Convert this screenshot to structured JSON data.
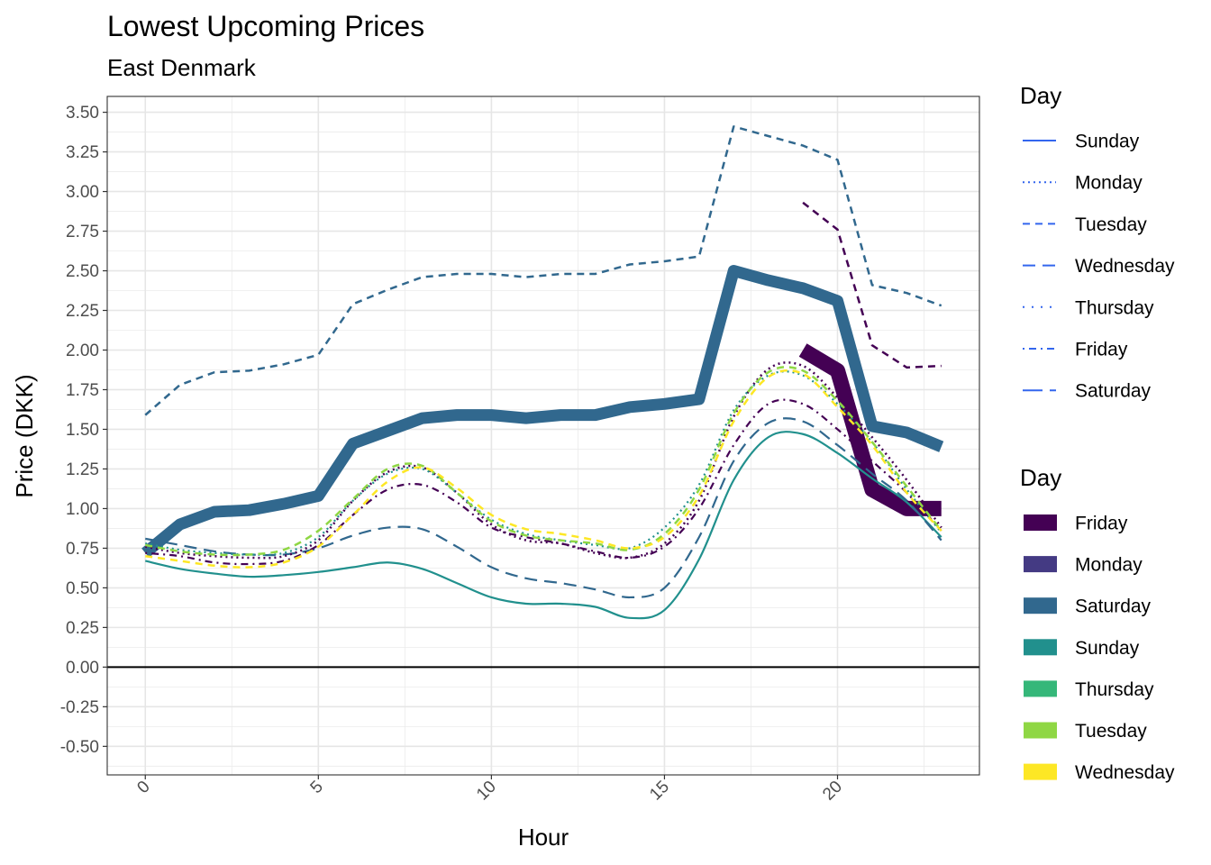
{
  "chart_data": {
    "type": "line",
    "title": "Lowest Upcoming Prices",
    "subtitle": "East Denmark",
    "xlabel": "Hour",
    "ylabel": "Price (DKK)",
    "xlim": [
      -1.1,
      24.1
    ],
    "ylim": [
      -0.68,
      3.6
    ],
    "x_ticks": [
      0,
      5,
      10,
      15,
      20
    ],
    "y_ticks": [
      3.5,
      3.25,
      3.0,
      2.75,
      2.5,
      2.25,
      2.0,
      1.75,
      1.5,
      1.25,
      1.0,
      0.75,
      0.5,
      0.25,
      0.0,
      -0.25,
      -0.5
    ],
    "y_tick_labels": [
      "3.50",
      "3.25",
      "3.00",
      "2.75",
      "2.50",
      "2.25",
      "2.00",
      "1.75",
      "1.50",
      "1.25",
      "1.00",
      "0.75",
      "0.50",
      "0.25",
      "0.00",
      "-0.25",
      "-0.50"
    ],
    "grid": true,
    "reference_line_y": 0,
    "legends": {
      "linetype": {
        "title": "Day",
        "color": "#3366ee",
        "entries": [
          {
            "label": "Sunday",
            "dash": "solid"
          },
          {
            "label": "Monday",
            "dash": "dotted"
          },
          {
            "label": "Tuesday",
            "dash": "dashed"
          },
          {
            "label": "Wednesday",
            "dash": "longdash"
          },
          {
            "label": "Thursday",
            "dash": "dotted-sparse"
          },
          {
            "label": "Friday",
            "dash": "dotdash"
          },
          {
            "label": "Saturday",
            "dash": "longdash-wide"
          }
        ]
      },
      "color": {
        "title": "Day",
        "entries": [
          {
            "label": "Friday",
            "color": "#440154"
          },
          {
            "label": "Monday",
            "color": "#443a83"
          },
          {
            "label": "Saturday",
            "color": "#31688e"
          },
          {
            "label": "Sunday",
            "color": "#21908d"
          },
          {
            "label": "Thursday",
            "color": "#35b779"
          },
          {
            "label": "Tuesday",
            "color": "#8fd744"
          },
          {
            "label": "Wednesday",
            "color": "#fde725"
          }
        ]
      }
    },
    "series": [
      {
        "name": "Saturday",
        "role": "actual",
        "color": "#31688e",
        "dash": "solid",
        "width": 13,
        "x": [
          0,
          1,
          2,
          3,
          4,
          5,
          6,
          7,
          8,
          9,
          10,
          11,
          12,
          13,
          14,
          15,
          16,
          17,
          18,
          19,
          20,
          21,
          22,
          23
        ],
        "y": [
          0.72,
          0.9,
          0.98,
          0.99,
          1.03,
          1.08,
          1.41,
          1.49,
          1.57,
          1.59,
          1.59,
          1.57,
          1.59,
          1.59,
          1.64,
          1.66,
          1.69,
          2.5,
          2.44,
          2.39,
          2.31,
          1.52,
          1.48,
          1.39
        ]
      },
      {
        "name": "Friday",
        "role": "actual",
        "color": "#440154",
        "dash": "solid",
        "width": 17,
        "x": [
          19,
          20,
          21,
          22,
          23
        ],
        "y": [
          2.0,
          1.87,
          1.12,
          1.0,
          1.0
        ]
      },
      {
        "name": "Wednesday",
        "role": "forecast",
        "color": "#31688e",
        "dash": "dashed",
        "width": 2.5,
        "x": [
          0,
          1,
          2,
          3,
          4,
          5,
          6,
          7,
          8,
          9,
          10,
          11,
          12,
          13,
          14,
          15,
          16,
          17,
          18,
          19,
          20,
          21,
          22,
          23
        ],
        "y": [
          1.59,
          1.78,
          1.86,
          1.87,
          1.91,
          1.97,
          2.29,
          2.38,
          2.46,
          2.48,
          2.48,
          2.46,
          2.48,
          2.48,
          2.54,
          2.56,
          2.59,
          3.41,
          3.35,
          3.29,
          3.2,
          2.41,
          2.36,
          2.28
        ]
      },
      {
        "name": "Friday",
        "role": "forecast",
        "color": "#440154",
        "dash": "dashed",
        "width": 2.5,
        "x": [
          19,
          20,
          21,
          22,
          23
        ],
        "y": [
          2.93,
          2.76,
          2.03,
          1.89,
          1.9
        ]
      },
      {
        "name": "Sunday",
        "role": "forecast",
        "color": "#21908d",
        "dash": "solid",
        "width": 2.2,
        "x": [
          0,
          1,
          2,
          3,
          4,
          5,
          6,
          7,
          8,
          9,
          10,
          11,
          12,
          13,
          14,
          15,
          16,
          17,
          18,
          19,
          20,
          21,
          22,
          23
        ],
        "y": [
          0.67,
          0.62,
          0.59,
          0.57,
          0.58,
          0.6,
          0.63,
          0.66,
          0.62,
          0.53,
          0.44,
          0.4,
          0.4,
          0.38,
          0.31,
          0.36,
          0.68,
          1.18,
          1.45,
          1.47,
          1.35,
          1.19,
          1.04,
          0.82
        ]
      },
      {
        "name": "Saturday",
        "role": "forecast",
        "color": "#31688e",
        "dash": "longdash",
        "width": 2.2,
        "x": [
          0,
          1,
          2,
          3,
          4,
          5,
          6,
          7,
          8,
          9,
          10,
          11,
          12,
          13,
          14,
          15,
          16,
          17,
          18,
          19,
          20,
          21,
          22,
          23
        ],
        "y": [
          0.81,
          0.77,
          0.73,
          0.71,
          0.71,
          0.75,
          0.83,
          0.88,
          0.87,
          0.76,
          0.63,
          0.56,
          0.53,
          0.49,
          0.44,
          0.5,
          0.82,
          1.3,
          1.54,
          1.55,
          1.4,
          1.22,
          1.05,
          0.8
        ]
      },
      {
        "name": "Friday",
        "role": "forecast",
        "color": "#440154",
        "dash": "dotdash",
        "width": 2.2,
        "x": [
          0,
          1,
          2,
          3,
          4,
          5,
          6,
          7,
          8,
          9,
          10,
          11,
          12,
          13,
          14,
          15,
          16,
          17,
          18,
          19,
          20,
          21,
          22,
          23
        ],
        "y": [
          0.72,
          0.7,
          0.66,
          0.65,
          0.67,
          0.77,
          0.96,
          1.12,
          1.15,
          1.04,
          0.88,
          0.82,
          0.78,
          0.73,
          0.69,
          0.76,
          1.0,
          1.4,
          1.66,
          1.66,
          1.5,
          1.3,
          1.1,
          0.86
        ]
      },
      {
        "name": "Monday",
        "role": "forecast",
        "color": "#440154",
        "dash": "dotted",
        "width": 2.5,
        "x": [
          0,
          1,
          2,
          3,
          4,
          5,
          6,
          7,
          8,
          9,
          10,
          11,
          12,
          13,
          14,
          15,
          16,
          17,
          18,
          19,
          20,
          21,
          22,
          23
        ],
        "y": [
          0.76,
          0.72,
          0.7,
          0.69,
          0.7,
          0.8,
          1.05,
          1.23,
          1.26,
          1.1,
          0.9,
          0.8,
          0.78,
          0.72,
          0.69,
          0.78,
          1.05,
          1.58,
          1.88,
          1.9,
          1.7,
          1.45,
          1.18,
          0.88
        ]
      },
      {
        "name": "Thursday",
        "role": "forecast",
        "color": "#21908d",
        "dash": "dotted",
        "width": 2.2,
        "x": [
          0,
          1,
          2,
          3,
          4,
          5,
          6,
          7,
          8,
          9,
          10,
          11,
          12,
          13,
          14,
          15,
          16,
          17,
          18,
          19,
          20,
          21,
          22,
          23
        ],
        "y": [
          0.78,
          0.74,
          0.72,
          0.71,
          0.72,
          0.82,
          1.05,
          1.22,
          1.25,
          1.1,
          0.93,
          0.84,
          0.8,
          0.77,
          0.75,
          0.88,
          1.15,
          1.62,
          1.84,
          1.84,
          1.66,
          1.42,
          1.12,
          0.85
        ]
      },
      {
        "name": "Tuesday",
        "role": "forecast",
        "color": "#8fd744",
        "dash": "dashed",
        "width": 2.5,
        "x": [
          0,
          1,
          2,
          3,
          4,
          5,
          6,
          7,
          8,
          9,
          10,
          11,
          12,
          13,
          14,
          15,
          16,
          17,
          18,
          19,
          20,
          21,
          22,
          23
        ],
        "y": [
          0.77,
          0.73,
          0.71,
          0.71,
          0.74,
          0.86,
          1.06,
          1.25,
          1.27,
          1.1,
          0.92,
          0.83,
          0.8,
          0.78,
          0.74,
          0.84,
          1.12,
          1.6,
          1.86,
          1.87,
          1.68,
          1.42,
          1.14,
          0.86
        ]
      },
      {
        "name": "Wednesday",
        "role": "forecast",
        "color": "#fde725",
        "dash": "dashed",
        "width": 2.5,
        "x": [
          0,
          1,
          2,
          3,
          4,
          5,
          6,
          7,
          8,
          9,
          10,
          11,
          12,
          13,
          14,
          15,
          16,
          17,
          18,
          19,
          20,
          21,
          22,
          23
        ],
        "y": [
          0.7,
          0.67,
          0.64,
          0.63,
          0.66,
          0.76,
          0.96,
          1.17,
          1.26,
          1.13,
          0.96,
          0.87,
          0.84,
          0.8,
          0.75,
          0.82,
          1.08,
          1.55,
          1.83,
          1.85,
          1.64,
          1.4,
          1.1,
          0.86
        ]
      }
    ]
  }
}
